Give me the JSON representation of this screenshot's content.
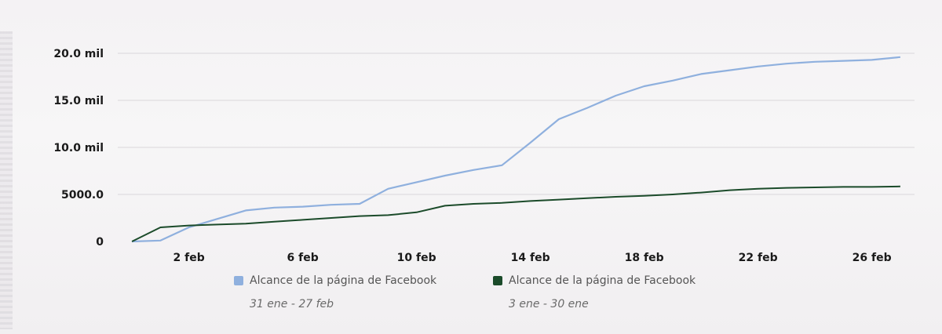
{
  "chart_data": {
    "type": "line",
    "y_tick_labels": [
      "0",
      "5000.0",
      "10.0 mil",
      "15.0 mil",
      "20.0 mil"
    ],
    "y_tick_values": [
      0,
      5000,
      10000,
      15000,
      20000
    ],
    "x_tick_labels": [
      "2 feb",
      "6 feb",
      "10 feb",
      "14 feb",
      "18 feb",
      "22 feb",
      "26 feb"
    ],
    "x_tick_values": [
      2,
      6,
      10,
      14,
      18,
      22,
      26
    ],
    "xlim": [
      -0.5,
      27.5
    ],
    "ylim": [
      0,
      20000
    ],
    "grid": true,
    "legend_position": "bottom",
    "series": [
      {
        "name": "Alcance de la página de Facebook",
        "period": "31 ene - 27 feb",
        "color": "#8fb0de",
        "x": [
          0,
          1,
          2,
          3,
          4,
          5,
          6,
          7,
          8,
          9,
          10,
          11,
          12,
          13,
          14,
          15,
          16,
          17,
          18,
          19,
          20,
          21,
          22,
          23,
          24,
          25,
          26,
          27
        ],
        "y": [
          0,
          100,
          1500,
          2400,
          3300,
          3600,
          3700,
          3900,
          4000,
          5600,
          6300,
          7000,
          7600,
          8100,
          10500,
          13000,
          14200,
          15500,
          16500,
          17100,
          17800,
          18200,
          18600,
          18900,
          19100,
          19200,
          19300,
          19600
        ]
      },
      {
        "name": "Alcance de la página de Facebook",
        "period": "3 ene - 30 ene",
        "color": "#1b4b2a",
        "x": [
          0,
          1,
          2,
          3,
          4,
          5,
          6,
          7,
          8,
          9,
          10,
          11,
          12,
          13,
          14,
          15,
          16,
          17,
          18,
          19,
          20,
          21,
          22,
          23,
          24,
          25,
          26,
          27
        ],
        "y": [
          0,
          1500,
          1700,
          1800,
          1900,
          2100,
          2300,
          2500,
          2700,
          2800,
          3100,
          3800,
          4000,
          4100,
          4300,
          4450,
          4600,
          4750,
          4850,
          5000,
          5200,
          5450,
          5600,
          5700,
          5750,
          5800,
          5800,
          5850
        ]
      }
    ]
  }
}
